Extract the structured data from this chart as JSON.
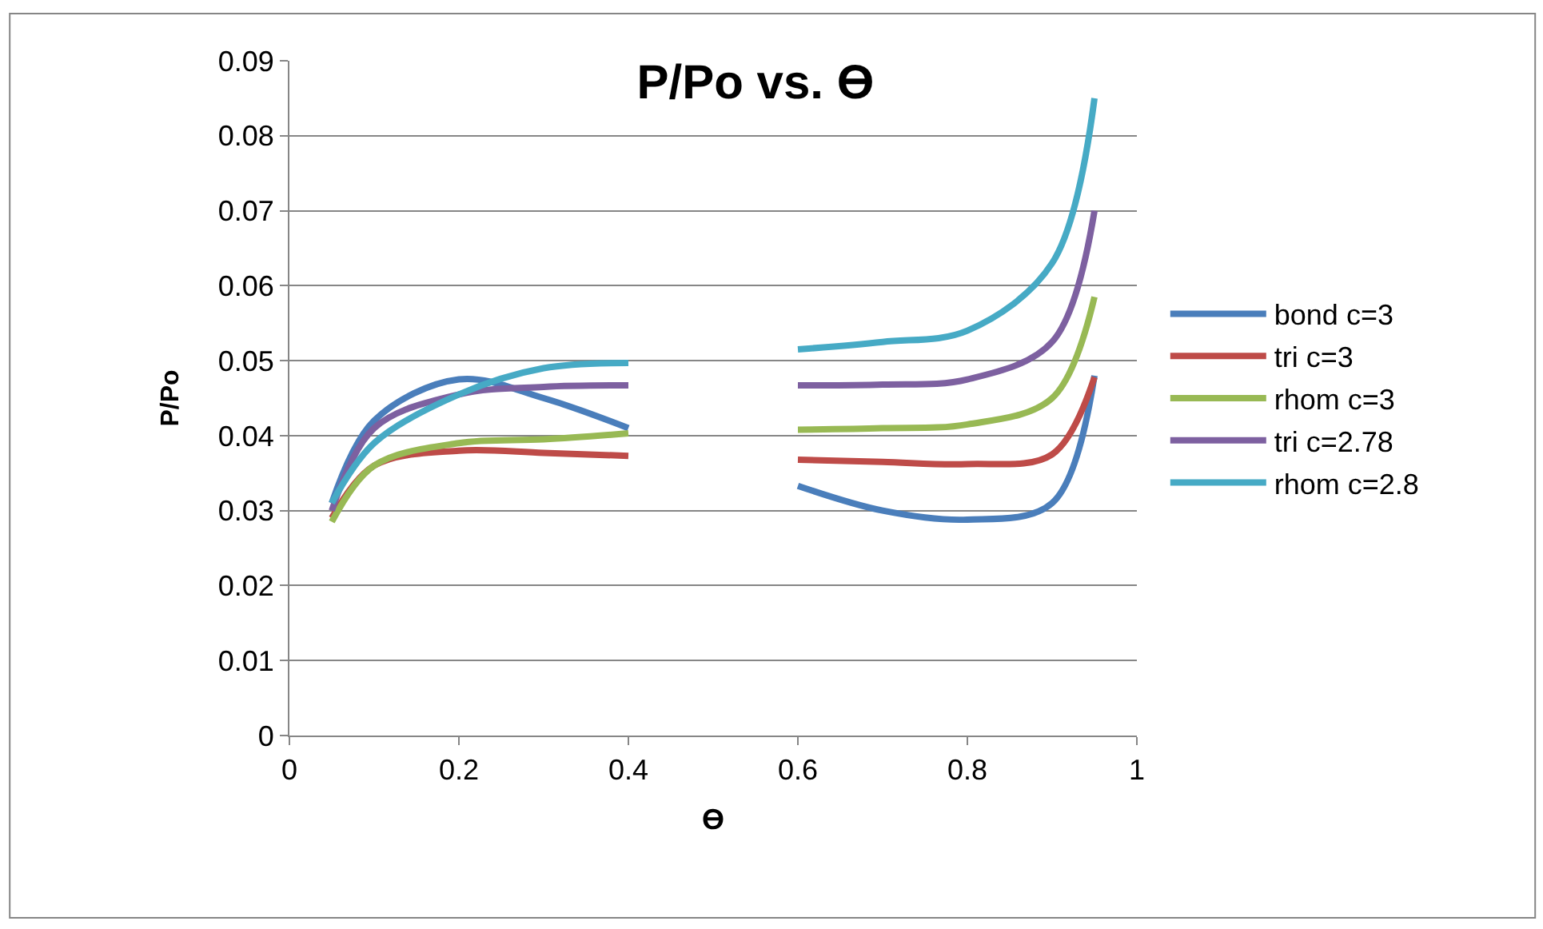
{
  "chart_data": {
    "type": "line",
    "title": "P/Po vs. ϴ",
    "xlabel": "ϴ",
    "ylabel": "P/Po",
    "x": [
      0.05,
      0.1,
      0.2,
      0.3,
      0.4,
      0.5,
      0.6,
      0.7,
      0.8,
      0.9,
      0.95
    ],
    "series": [
      {
        "name": "bond c=3",
        "color": "#4a7ebb",
        "values": [
          0.031,
          0.042,
          0.0475,
          0.045,
          0.041,
          null,
          0.0333,
          0.03,
          0.0288,
          0.031,
          0.048
        ]
      },
      {
        "name": "tri c=3",
        "color": "#be4b48",
        "values": [
          0.029,
          0.036,
          0.038,
          0.0377,
          0.0373,
          null,
          0.0368,
          0.0365,
          0.0362,
          0.0375,
          0.0478
        ]
      },
      {
        "name": "rhom c=3",
        "color": "#98b954",
        "values": [
          0.0285,
          0.036,
          0.039,
          0.0395,
          0.0403,
          null,
          0.0408,
          0.041,
          0.0415,
          0.045,
          0.0585
        ]
      },
      {
        "name": "tri c=2.78",
        "color": "#7d60a0",
        "values": [
          0.03,
          0.041,
          0.0455,
          0.0465,
          0.0467,
          null,
          0.0467,
          0.0468,
          0.0475,
          0.0525,
          0.07
        ]
      },
      {
        "name": "rhom c=2.8",
        "color": "#46aac5",
        "values": [
          0.031,
          0.039,
          0.0455,
          0.049,
          0.0497,
          null,
          0.0515,
          0.0525,
          0.054,
          0.063,
          0.085
        ]
      }
    ],
    "xlim": [
      0,
      1
    ],
    "xticks": [
      0,
      0.2,
      0.4,
      0.6,
      0.8,
      1
    ],
    "ylim": [
      0,
      0.09
    ],
    "yticks": [
      0,
      0.01,
      0.02,
      0.03,
      0.04,
      0.05,
      0.06,
      0.07,
      0.08,
      0.09
    ],
    "grid": "y",
    "legend": "right",
    "marker": "none",
    "line_style": "solid"
  }
}
